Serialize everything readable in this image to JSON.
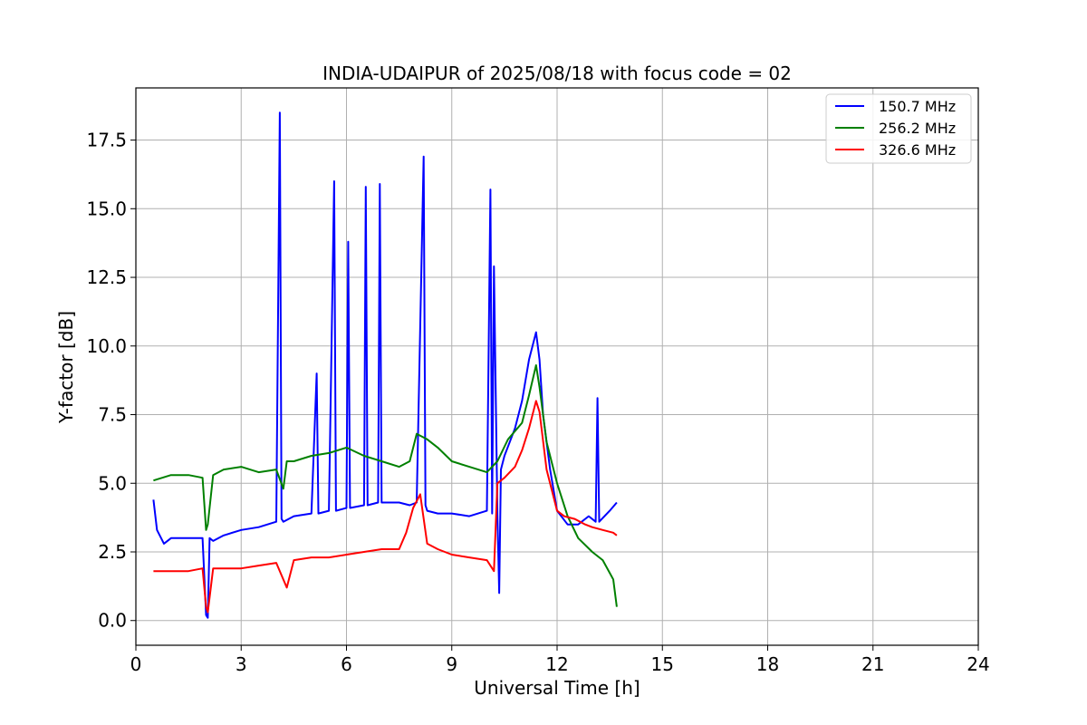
{
  "chart_data": {
    "type": "line",
    "title": "INDIA-UDAIPUR of 2025/08/18 with focus code = 02",
    "xlabel": "Universal Time [h]",
    "ylabel": "Y-factor [dB]",
    "xlim": [
      0,
      24
    ],
    "ylim": [
      -0.9,
      19.4
    ],
    "xticks": [
      0,
      3,
      6,
      9,
      12,
      15,
      18,
      21,
      24
    ],
    "yticks": [
      0.0,
      2.5,
      5.0,
      7.5,
      10.0,
      12.5,
      15.0,
      17.5
    ],
    "ytick_labels": [
      "0.0",
      "2.5",
      "5.0",
      "7.5",
      "10.0",
      "12.5",
      "15.0",
      "17.5"
    ],
    "grid": true,
    "legend_position": "top-right",
    "series": [
      {
        "name": "150.7 MHz",
        "color": "#0000ff",
        "x": [
          0.5,
          0.6,
          0.8,
          1.0,
          1.5,
          1.9,
          2.0,
          2.05,
          2.1,
          2.2,
          2.5,
          3.0,
          3.5,
          4.0,
          4.1,
          4.15,
          4.2,
          4.5,
          5.0,
          5.15,
          5.2,
          5.5,
          5.65,
          5.7,
          6.0,
          6.05,
          6.1,
          6.5,
          6.55,
          6.6,
          6.9,
          6.95,
          7.0,
          7.5,
          7.8,
          8.0,
          8.2,
          8.25,
          8.3,
          8.6,
          9.0,
          9.5,
          10.0,
          10.1,
          10.15,
          10.2,
          10.3,
          10.35,
          10.4,
          10.5,
          10.8,
          11.0,
          11.2,
          11.4,
          11.5,
          11.6,
          11.8,
          12.0,
          12.3,
          12.6,
          12.9,
          13.1,
          13.15,
          13.2,
          13.5,
          13.7
        ],
        "y": [
          4.4,
          3.3,
          2.8,
          3.0,
          3.0,
          3.0,
          0.2,
          0.1,
          3.0,
          2.9,
          3.1,
          3.3,
          3.4,
          3.6,
          18.5,
          3.7,
          3.6,
          3.8,
          3.9,
          9.0,
          3.9,
          4.0,
          16.0,
          4.0,
          4.1,
          13.8,
          4.1,
          4.2,
          15.8,
          4.2,
          4.3,
          15.9,
          4.3,
          4.3,
          4.2,
          4.3,
          16.9,
          4.2,
          4.0,
          3.9,
          3.9,
          3.8,
          4.0,
          15.7,
          3.9,
          12.9,
          3.9,
          1.0,
          5.5,
          6.0,
          7.0,
          8.0,
          9.5,
          10.5,
          9.5,
          7.5,
          5.5,
          4.0,
          3.5,
          3.5,
          3.8,
          3.6,
          8.1,
          3.6,
          4.0,
          4.3
        ]
      },
      {
        "name": "256.2 MHz",
        "color": "#008000",
        "x": [
          0.5,
          1.0,
          1.5,
          1.9,
          2.0,
          2.05,
          2.2,
          2.5,
          3.0,
          3.5,
          4.0,
          4.2,
          4.3,
          4.5,
          5.0,
          5.5,
          6.0,
          6.5,
          7.0,
          7.5,
          7.8,
          8.0,
          8.3,
          8.6,
          9.0,
          9.5,
          10.0,
          10.3,
          10.6,
          11.0,
          11.2,
          11.4,
          11.5,
          11.7,
          12.0,
          12.3,
          12.6,
          13.0,
          13.3,
          13.6,
          13.7
        ],
        "y": [
          5.1,
          5.3,
          5.3,
          5.2,
          3.3,
          3.5,
          5.3,
          5.5,
          5.6,
          5.4,
          5.5,
          4.8,
          5.8,
          5.8,
          6.0,
          6.1,
          6.3,
          6.0,
          5.8,
          5.6,
          5.8,
          6.8,
          6.6,
          6.3,
          5.8,
          5.6,
          5.4,
          5.8,
          6.6,
          7.2,
          8.2,
          9.3,
          8.5,
          6.5,
          5.0,
          3.8,
          3.0,
          2.5,
          2.2,
          1.5,
          0.5
        ]
      },
      {
        "name": "326.6 MHz",
        "color": "#ff0000",
        "x": [
          0.5,
          1.0,
          1.5,
          1.9,
          2.0,
          2.05,
          2.2,
          2.5,
          3.0,
          3.5,
          4.0,
          4.3,
          4.5,
          5.0,
          5.5,
          6.0,
          6.5,
          7.0,
          7.5,
          7.7,
          7.9,
          8.1,
          8.3,
          8.6,
          9.0,
          9.5,
          10.0,
          10.2,
          10.3,
          10.5,
          10.8,
          11.0,
          11.2,
          11.4,
          11.5,
          11.7,
          12.0,
          12.2,
          12.5,
          12.8,
          13.0,
          13.3,
          13.6,
          13.7
        ],
        "y": [
          1.8,
          1.8,
          1.8,
          1.9,
          0.5,
          0.3,
          1.9,
          1.9,
          1.9,
          2.0,
          2.1,
          1.2,
          2.2,
          2.3,
          2.3,
          2.4,
          2.5,
          2.6,
          2.6,
          3.2,
          4.1,
          4.6,
          2.8,
          2.6,
          2.4,
          2.3,
          2.2,
          1.8,
          5.0,
          5.2,
          5.6,
          6.2,
          7.0,
          8.0,
          7.6,
          5.5,
          4.0,
          3.8,
          3.7,
          3.5,
          3.4,
          3.3,
          3.2,
          3.1
        ]
      }
    ]
  }
}
